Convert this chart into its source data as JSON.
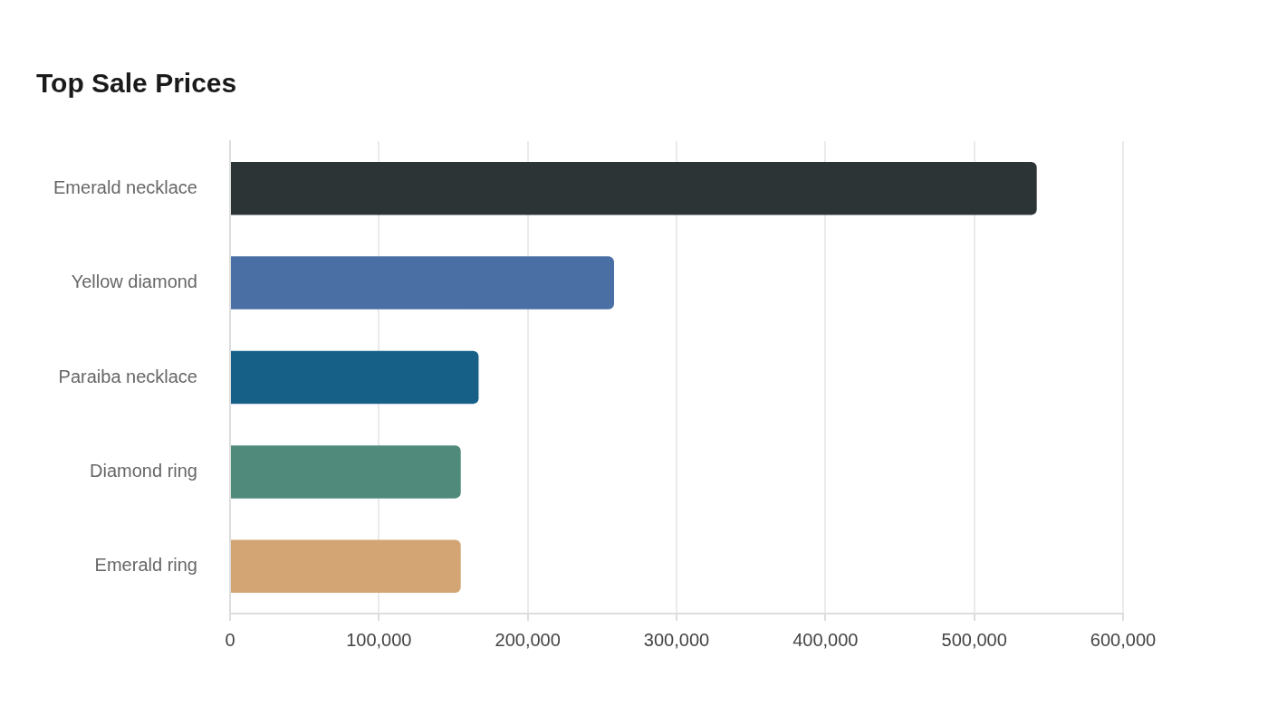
{
  "chart_data": {
    "type": "bar",
    "orientation": "horizontal",
    "title": "Top Sale Prices",
    "categories": [
      "Emerald necklace",
      "Yellow diamond",
      "Paraiba necklace",
      "Diamond ring",
      "Emerald ring"
    ],
    "values": [
      542000,
      258000,
      167000,
      155000,
      155000
    ],
    "colors": [
      "#2d3436",
      "#4a6fa5",
      "#166088",
      "#4f8a7a",
      "#d4a574"
    ],
    "xlim": [
      0,
      600000
    ],
    "xticks": [
      0,
      {
        "value": 100000,
        "label": "100,000"
      },
      {
        "value": 200000,
        "label": "200,000"
      },
      {
        "value": 300000,
        "label": "300,000"
      },
      {
        "value": 400000,
        "label": "400,000"
      },
      {
        "value": 500000,
        "label": "500,000"
      },
      {
        "value": 600000,
        "label": "600,000"
      }
    ],
    "grid": "x",
    "legend": false
  }
}
